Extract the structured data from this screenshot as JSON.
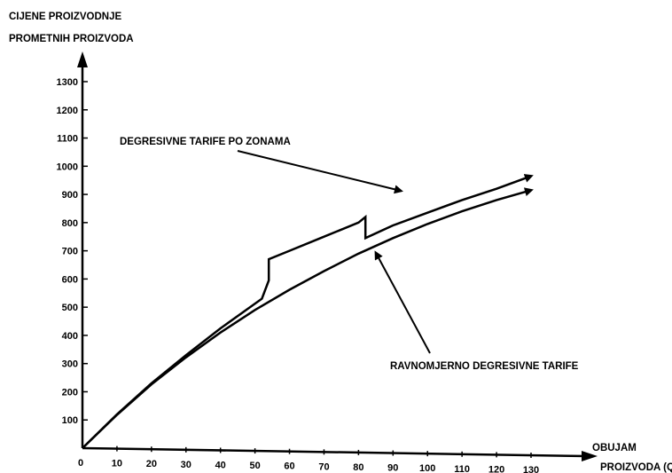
{
  "chart_data": {
    "type": "line",
    "ylabel": [
      "CIJENE PROIZVODNJE",
      "PROMETNIH PROIZVODA"
    ],
    "xlabel": [
      "OBUJAM",
      "PROIZVODA (Q)"
    ],
    "x_ticks": [
      "0",
      "10",
      "20",
      "30",
      "40",
      "50",
      "60",
      "70",
      "80",
      "90",
      "100",
      "110",
      "120",
      "130"
    ],
    "y_ticks": [
      "100",
      "200",
      "300",
      "400",
      "500",
      "600",
      "700",
      "800",
      "900",
      "1000",
      "1100",
      "1200",
      "1300"
    ],
    "xlim": [
      0,
      130
    ],
    "ylim": [
      0,
      1300
    ],
    "grid": false,
    "series": [
      {
        "name": "DEGRESIVNE TARIFE PO ZONAMA",
        "segments": [
          [
            [
              0,
              0
            ],
            [
              10,
              120
            ],
            [
              20,
              230
            ],
            [
              30,
              330
            ],
            [
              40,
              425
            ],
            [
              52,
              530
            ],
            [
              54,
              595
            ]
          ],
          [
            [
              54,
              670
            ],
            [
              60,
              700
            ],
            [
              70,
              750
            ],
            [
              80,
              800
            ],
            [
              82,
              820
            ]
          ],
          [
            [
              82,
              745
            ],
            [
              90,
              790
            ],
            [
              100,
              835
            ],
            [
              110,
              880
            ],
            [
              120,
              920
            ],
            [
              130,
              965
            ]
          ]
        ]
      },
      {
        "name": "RAVNOMJERNO DEGRESIVNE TARIFE",
        "points": [
          [
            0,
            0
          ],
          [
            10,
            118
          ],
          [
            20,
            226
          ],
          [
            30,
            322
          ],
          [
            40,
            410
          ],
          [
            50,
            490
          ],
          [
            60,
            562
          ],
          [
            70,
            628
          ],
          [
            80,
            690
          ],
          [
            90,
            745
          ],
          [
            100,
            795
          ],
          [
            110,
            840
          ],
          [
            120,
            880
          ],
          [
            130,
            915
          ]
        ]
      }
    ]
  }
}
